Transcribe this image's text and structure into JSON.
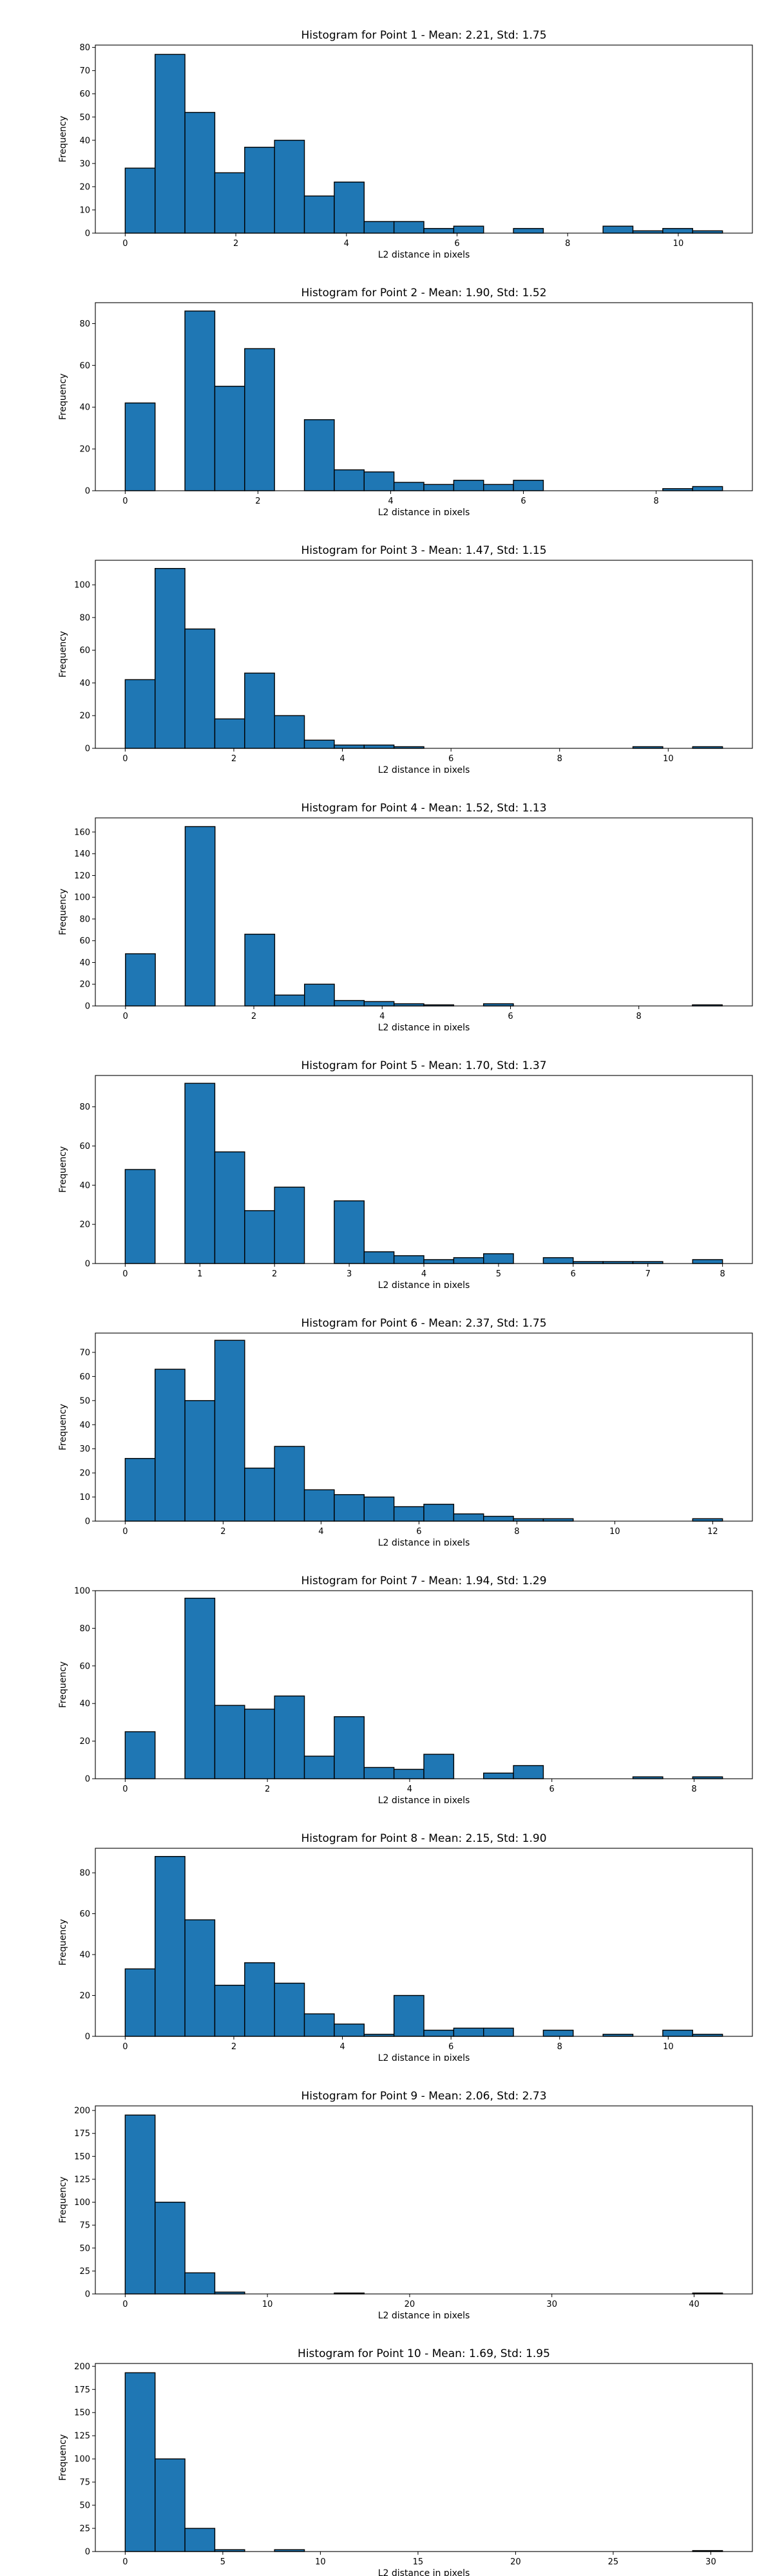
{
  "chart_data": [
    {
      "type": "bar",
      "title": "Histogram for Point 1 - Mean: 2.21, Std: 1.75",
      "xlabel": "L2 distance in pixels",
      "ylabel": "Frequency",
      "xlim": [
        -0.54,
        11.34
      ],
      "ylim": [
        0,
        81
      ],
      "xticks": [
        0,
        2,
        4,
        6,
        8,
        10
      ],
      "yticks": [
        0,
        10,
        20,
        30,
        40,
        50,
        60,
        70,
        80
      ],
      "bin_edges": [
        0,
        0.54,
        1.08,
        1.62,
        2.16,
        2.7,
        3.24,
        3.78,
        4.32,
        4.86,
        5.4,
        5.94,
        6.48,
        7.02,
        7.56,
        8.1,
        8.64,
        9.18,
        9.72,
        10.26,
        10.8
      ],
      "counts": [
        28,
        77,
        52,
        26,
        37,
        40,
        16,
        22,
        5,
        5,
        2,
        3,
        0,
        2,
        0,
        0,
        3,
        1,
        2,
        1
      ]
    },
    {
      "type": "bar",
      "title": "Histogram for Point 2 - Mean: 1.90, Std: 1.52",
      "xlabel": "L2 distance in pixels",
      "ylabel": "Frequency",
      "xlim": [
        -0.45,
        9.45
      ],
      "ylim": [
        0,
        90
      ],
      "xticks": [
        0,
        2,
        4,
        6,
        8
      ],
      "yticks": [
        0,
        20,
        40,
        60,
        80
      ],
      "bin_edges": [
        0,
        0.45,
        0.9,
        1.35,
        1.8,
        2.25,
        2.7,
        3.15,
        3.6,
        4.05,
        4.5,
        4.95,
        5.4,
        5.85,
        6.3,
        6.75,
        7.2,
        7.65,
        8.1,
        8.55,
        9.0
      ],
      "counts": [
        42,
        0,
        86,
        50,
        68,
        0,
        34,
        10,
        9,
        4,
        3,
        5,
        3,
        5,
        0,
        0,
        0,
        0,
        1,
        2
      ]
    },
    {
      "type": "bar",
      "title": "Histogram for Point 3 - Mean: 1.47, Std: 1.15",
      "xlabel": "L2 distance in pixels",
      "ylabel": "Frequency",
      "xlim": [
        -0.55,
        11.55
      ],
      "ylim": [
        0,
        115
      ],
      "xticks": [
        0,
        2,
        4,
        6,
        8,
        10
      ],
      "yticks": [
        0,
        20,
        40,
        60,
        80,
        100
      ],
      "bin_edges": [
        0,
        0.55,
        1.1,
        1.65,
        2.2,
        2.75,
        3.3,
        3.85,
        4.4,
        4.95,
        5.5,
        6.05,
        6.6,
        7.15,
        7.7,
        8.25,
        8.8,
        9.35,
        9.9,
        10.45,
        11.0
      ],
      "counts": [
        42,
        110,
        73,
        18,
        46,
        20,
        5,
        2,
        2,
        1,
        0,
        0,
        0,
        0,
        0,
        0,
        0,
        1,
        0,
        1
      ]
    },
    {
      "type": "bar",
      "title": "Histogram for Point 4 - Mean: 1.52, Std: 1.13",
      "xlabel": "L2 distance in pixels",
      "ylabel": "Frequency",
      "xlim": [
        -0.47,
        9.77
      ],
      "ylim": [
        0,
        173
      ],
      "xticks": [
        0,
        2,
        4,
        6,
        8
      ],
      "yticks": [
        0,
        20,
        40,
        60,
        80,
        100,
        120,
        140,
        160
      ],
      "bin_edges": [
        0,
        0.465,
        0.93,
        1.395,
        1.86,
        2.325,
        2.79,
        3.255,
        3.72,
        4.185,
        4.65,
        5.115,
        5.58,
        6.045,
        6.51,
        6.975,
        7.44,
        7.905,
        8.37,
        8.835,
        9.3
      ],
      "counts": [
        48,
        0,
        165,
        0,
        66,
        10,
        20,
        5,
        4,
        2,
        1,
        0,
        2,
        0,
        0,
        0,
        0,
        0,
        0,
        1
      ]
    },
    {
      "type": "bar",
      "title": "Histogram for Point 5 - Mean: 1.70, Std: 1.37",
      "xlabel": "L2 distance in pixels",
      "ylabel": "Frequency",
      "xlim": [
        -0.4,
        8.4
      ],
      "ylim": [
        0,
        96
      ],
      "xticks": [
        0,
        1,
        2,
        3,
        4,
        5,
        6,
        7,
        8
      ],
      "yticks": [
        0,
        20,
        40,
        60,
        80
      ],
      "bin_edges": [
        0,
        0.4,
        0.8,
        1.2,
        1.6,
        2.0,
        2.4,
        2.8,
        3.2,
        3.6,
        4.0,
        4.4,
        4.8,
        5.2,
        5.6,
        6.0,
        6.4,
        6.8,
        7.2,
        7.6,
        8.0
      ],
      "counts": [
        48,
        0,
        92,
        57,
        27,
        39,
        0,
        32,
        6,
        4,
        2,
        3,
        5,
        0,
        3,
        1,
        1,
        1,
        0,
        2
      ]
    },
    {
      "type": "bar",
      "title": "Histogram for Point 6 - Mean: 2.37, Std: 1.75",
      "xlabel": "L2 distance in pixels",
      "ylabel": "Frequency",
      "xlim": [
        -0.61,
        12.81
      ],
      "ylim": [
        0,
        78
      ],
      "xticks": [
        0,
        2,
        4,
        6,
        8,
        10,
        12
      ],
      "yticks": [
        0,
        10,
        20,
        30,
        40,
        50,
        60,
        70
      ],
      "bin_edges": [
        0,
        0.61,
        1.22,
        1.83,
        2.44,
        3.05,
        3.66,
        4.27,
        4.88,
        5.49,
        6.1,
        6.71,
        7.32,
        7.93,
        8.54,
        9.15,
        9.76,
        10.37,
        10.98,
        11.59,
        12.2
      ],
      "counts": [
        26,
        63,
        50,
        75,
        22,
        31,
        13,
        11,
        10,
        6,
        7,
        3,
        2,
        1,
        1,
        0,
        0,
        0,
        0,
        1
      ]
    },
    {
      "type": "bar",
      "title": "Histogram for Point 7 - Mean: 1.94, Std: 1.29",
      "xlabel": "L2 distance in pixels",
      "ylabel": "Frequency",
      "xlim": [
        -0.42,
        8.82
      ],
      "ylim": [
        0,
        100
      ],
      "xticks": [
        0,
        2,
        4,
        6,
        8
      ],
      "yticks": [
        0,
        20,
        40,
        60,
        80,
        100
      ],
      "bin_edges": [
        0,
        0.42,
        0.84,
        1.26,
        1.68,
        2.1,
        2.52,
        2.94,
        3.36,
        3.78,
        4.2,
        4.62,
        5.04,
        5.46,
        5.88,
        6.3,
        6.72,
        7.14,
        7.56,
        7.98,
        8.4
      ],
      "counts": [
        25,
        0,
        96,
        39,
        37,
        44,
        12,
        33,
        6,
        5,
        13,
        0,
        3,
        7,
        0,
        0,
        0,
        1,
        0,
        1
      ]
    },
    {
      "type": "bar",
      "title": "Histogram for Point 8 - Mean: 2.15, Std: 1.90",
      "xlabel": "L2 distance in pixels",
      "ylabel": "Frequency",
      "xlim": [
        -0.55,
        11.55
      ],
      "ylim": [
        0,
        92
      ],
      "xticks": [
        0,
        2,
        4,
        6,
        8,
        10
      ],
      "yticks": [
        0,
        20,
        40,
        60,
        80
      ],
      "bin_edges": [
        0,
        0.55,
        1.1,
        1.65,
        2.2,
        2.75,
        3.3,
        3.85,
        4.4,
        4.95,
        5.5,
        6.05,
        6.6,
        7.15,
        7.7,
        8.25,
        8.8,
        9.35,
        9.9,
        10.45,
        11.0
      ],
      "counts": [
        33,
        88,
        57,
        25,
        36,
        26,
        11,
        6,
        1,
        20,
        3,
        4,
        4,
        0,
        3,
        0,
        1,
        0,
        3,
        1
      ]
    },
    {
      "type": "bar",
      "title": "Histogram for Point 9 - Mean: 2.06, Std: 2.73",
      "xlabel": "L2 distance in pixels",
      "ylabel": "Frequency",
      "xlim": [
        -2.1,
        44.1
      ],
      "ylim": [
        0,
        205
      ],
      "xticks": [
        0,
        10,
        20,
        30,
        40
      ],
      "yticks": [
        0,
        25,
        50,
        75,
        100,
        125,
        150,
        175,
        200
      ],
      "bin_edges": [
        0,
        2.1,
        4.2,
        6.3,
        8.4,
        10.5,
        12.6,
        14.7,
        16.8,
        18.9,
        21.0,
        23.1,
        25.2,
        27.3,
        29.4,
        31.5,
        33.6,
        35.7,
        37.8,
        39.9,
        42.0
      ],
      "counts": [
        195,
        100,
        23,
        2,
        0,
        0,
        0,
        1,
        0,
        0,
        0,
        0,
        0,
        0,
        0,
        0,
        0,
        0,
        0,
        1
      ]
    },
    {
      "type": "bar",
      "title": "Histogram for Point 10 - Mean: 1.69, Std: 1.95",
      "xlabel": "L2 distance in pixels",
      "ylabel": "Frequency",
      "xlim": [
        -1.53,
        32.13
      ],
      "ylim": [
        0,
        203
      ],
      "xticks": [
        0,
        5,
        10,
        15,
        20,
        25,
        30
      ],
      "yticks": [
        0,
        25,
        50,
        75,
        100,
        125,
        150,
        175,
        200
      ],
      "bin_edges": [
        0,
        1.53,
        3.06,
        4.59,
        6.12,
        7.65,
        9.18,
        10.71,
        12.24,
        13.77,
        15.3,
        16.83,
        18.36,
        19.89,
        21.42,
        22.95,
        24.48,
        26.01,
        27.54,
        29.07,
        30.6
      ],
      "counts": [
        193,
        100,
        25,
        2,
        0,
        2,
        0,
        0,
        0,
        0,
        0,
        0,
        0,
        0,
        0,
        0,
        0,
        0,
        0,
        1
      ]
    }
  ],
  "colors": {
    "bar_fill": "#1f77b4",
    "bar_edge": "#000000",
    "axes": "#000000",
    "background": "#ffffff"
  }
}
